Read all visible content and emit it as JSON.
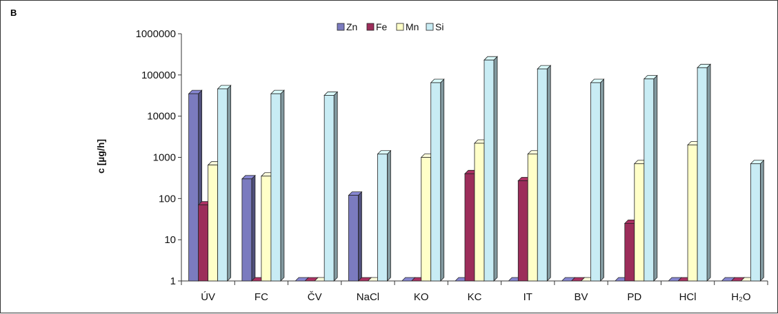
{
  "figure": {
    "panel_label": "B"
  },
  "chart_data": {
    "type": "bar",
    "yscale": "log",
    "ylim": [
      1,
      1000000
    ],
    "ylabel": "c [µg/h]",
    "xlabel": "",
    "title": "",
    "yticks": [
      "1",
      "10",
      "100",
      "1000",
      "10000",
      "100000",
      "1000000"
    ],
    "categories": [
      "ÚV",
      "FC",
      "ČV",
      "NaCl",
      "KO",
      "KC",
      "IT",
      "BV",
      "PD",
      "HCl",
      "H₂O"
    ],
    "legend_position": "top-center",
    "grid": false,
    "series": [
      {
        "name": "Zn",
        "color": "#7b7bbf",
        "values": [
          35000,
          300,
          1,
          120,
          1,
          1,
          1,
          1,
          1,
          1,
          1
        ]
      },
      {
        "name": "Fe",
        "color": "#9c2d5a",
        "values": [
          70,
          1,
          1,
          1,
          1,
          400,
          270,
          1,
          25,
          1,
          1
        ]
      },
      {
        "name": "Mn",
        "color": "#ffffc8",
        "values": [
          650,
          350,
          1,
          1,
          1000,
          2200,
          1200,
          1,
          700,
          2000,
          1
        ]
      },
      {
        "name": "Si",
        "color": "#c8ecf4",
        "values": [
          46000,
          35000,
          32000,
          1200,
          65000,
          230000,
          140000,
          65000,
          80000,
          150000,
          700
        ]
      }
    ]
  }
}
